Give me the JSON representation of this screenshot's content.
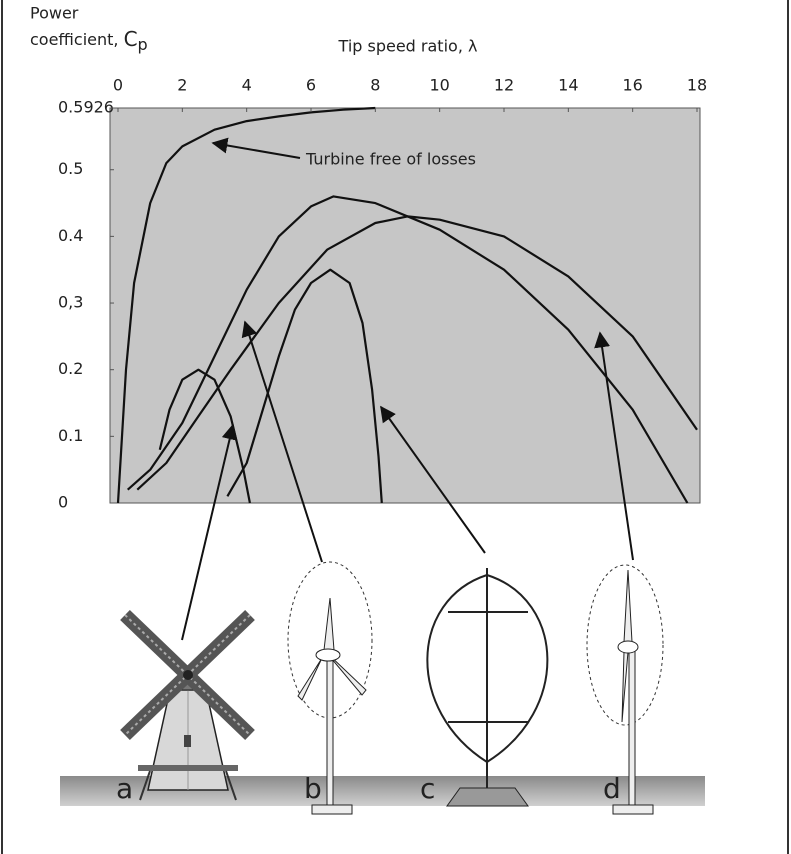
{
  "chart_data": {
    "type": "line",
    "y_label": {
      "line1": "Power",
      "line2": "coefficient, ",
      "symbol": "C",
      "subscript": "p"
    },
    "x_label": "Tip speed ratio, λ",
    "xlim": [
      0,
      18
    ],
    "xticks": [
      0,
      2,
      4,
      6,
      8,
      10,
      12,
      14,
      16,
      18
    ],
    "ylim": [
      0,
      0.5926
    ],
    "yticks": [
      0,
      0.1,
      0.2,
      {
        "value": 0.3,
        "label": "0,3"
      },
      0.4,
      0.5,
      0.5926
    ],
    "grid": false,
    "series": [
      {
        "name": "Turbine free of losses",
        "color": "#111111",
        "x": [
          0,
          0.25,
          0.5,
          1,
          1.5,
          2,
          3,
          4,
          5,
          6,
          7,
          8
        ],
        "values": [
          0,
          0.2,
          0.33,
          0.45,
          0.51,
          0.535,
          0.56,
          0.573,
          0.58,
          0.586,
          0.59,
          0.5926
        ]
      },
      {
        "name": "a",
        "color": "#111111",
        "x": [
          1.3,
          1.6,
          2,
          2.5,
          3,
          3.5,
          3.9,
          4.1
        ],
        "values": [
          0.08,
          0.14,
          0.185,
          0.2,
          0.185,
          0.13,
          0.05,
          0
        ]
      },
      {
        "name": "b",
        "color": "#111111",
        "x": [
          0.3,
          1,
          2,
          3,
          4,
          5,
          6,
          6.7,
          8,
          10,
          12,
          14,
          16,
          17.7
        ],
        "values": [
          0.02,
          0.05,
          0.12,
          0.22,
          0.32,
          0.4,
          0.445,
          0.46,
          0.45,
          0.41,
          0.35,
          0.26,
          0.14,
          0
        ]
      },
      {
        "name": "c",
        "color": "#111111",
        "x": [
          3.4,
          4,
          4.5,
          5,
          5.5,
          6,
          6.6,
          7.2,
          7.6,
          7.9,
          8.1,
          8.2
        ],
        "values": [
          0.01,
          0.06,
          0.14,
          0.22,
          0.29,
          0.33,
          0.35,
          0.33,
          0.27,
          0.17,
          0.07,
          0
        ]
      },
      {
        "name": "d",
        "color": "#111111",
        "x": [
          0.6,
          1.5,
          2.5,
          3.5,
          5,
          6.5,
          8,
          9,
          10,
          12,
          14,
          16,
          18
        ],
        "values": [
          0.02,
          0.06,
          0.13,
          0.2,
          0.3,
          0.38,
          0.42,
          0.43,
          0.425,
          0.4,
          0.34,
          0.25,
          0.11
        ]
      }
    ]
  }
}
